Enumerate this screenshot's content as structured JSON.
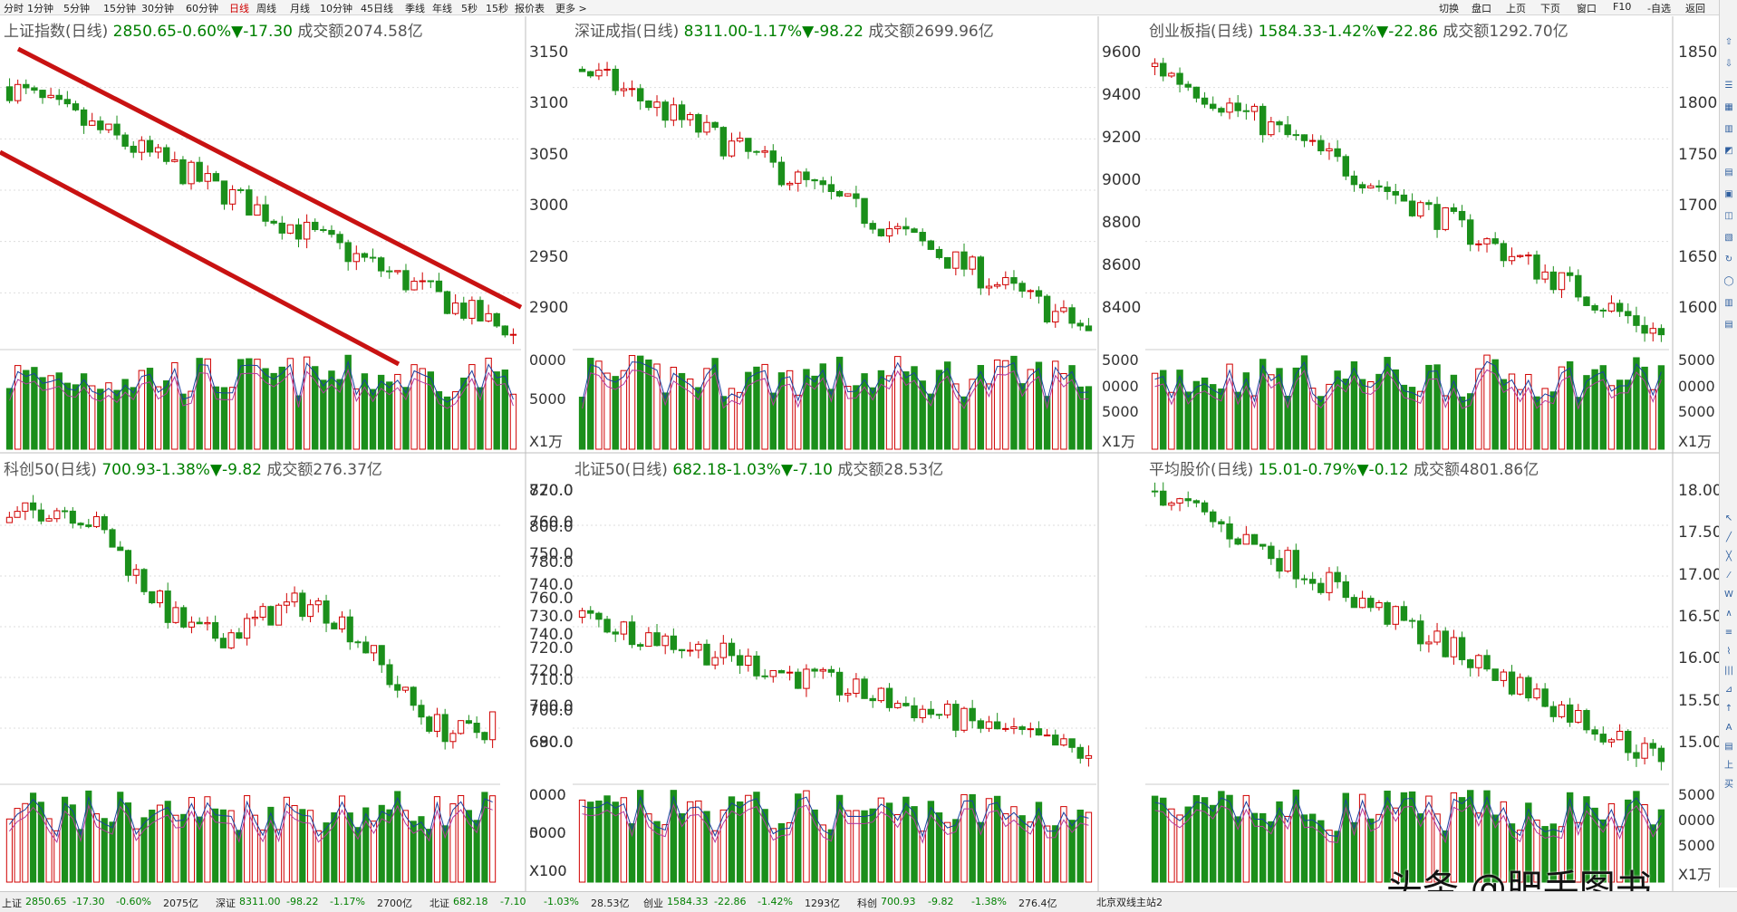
{
  "toolbar": {
    "timeframes": [
      "分时",
      "1分钟",
      "5分钟",
      "15分钟",
      "30分钟",
      "60分钟",
      "日线",
      "周线",
      "月线",
      "10分钟",
      "45日线",
      "季线",
      "年线",
      "5秒",
      "15秒",
      "报价表",
      "更多 >"
    ],
    "active": "日线",
    "right_buttons": [
      "切换",
      "盘口",
      "上页",
      "下页",
      "窗口",
      "F10",
      "-自选",
      "返回"
    ]
  },
  "panels": [
    {
      "name": "上证指数",
      "period": "(日线)",
      "price": "2850.65",
      "pct": "-0.60%",
      "change": "▼-17.30",
      "amount_label": "成交额",
      "amount": "2074.58亿",
      "y_axis_labels": [
        "3150",
        "3100",
        "3050",
        "3000",
        "2950",
        "2900"
      ],
      "volume_axis_labels": [
        "0000",
        "5000",
        "X1万"
      ],
      "chart_data": {
        "type": "candlestick",
        "ylim": [
          2840,
          3175
        ],
        "start": 3120,
        "end": 2850.65,
        "drift": "down",
        "trend_channel": true
      }
    },
    {
      "name": "深证成指",
      "period": "(日线)",
      "price": "8311.00",
      "pct": "-1.17%",
      "change": "▼-98.22",
      "amount_label": "成交额",
      "amount": "2699.96亿",
      "y_axis_labels": [],
      "volume_axis_labels": [],
      "chart_data": {
        "type": "candlestick",
        "ylim": [
          8250,
          9650
        ],
        "start": 9500,
        "end": 8311.0,
        "drift": "down"
      }
    },
    {
      "name": "创业板指",
      "period": "(日线)",
      "price": "1584.33",
      "pct": "-1.42%",
      "change": "▼-22.86",
      "amount_label": "成交额",
      "amount": "1292.70亿",
      "y_axis_labels_left": [
        "9600",
        "9400",
        "9200",
        "9000",
        "8800",
        "8600",
        "8400"
      ],
      "y_axis_labels": [
        "1850",
        "1800",
        "1750",
        "1700",
        "1650",
        "1600"
      ],
      "volume_axis_labels_left": [
        "5000",
        "0000",
        "5000",
        "X1万"
      ],
      "volume_axis_labels": [
        "5000",
        "0000",
        "5000",
        "X1万"
      ],
      "chart_data": {
        "type": "candlestick",
        "ylim": [
          1575,
          1880
        ],
        "start": 1850,
        "end": 1584.33,
        "drift": "down"
      }
    },
    {
      "name": "科创50",
      "period": "(日线)",
      "price": "700.93",
      "pct": "-1.38%",
      "change": "▼-9.82",
      "amount_label": "成交额",
      "amount": "276.37亿",
      "y_axis_labels": [
        "770.0",
        "760.0",
        "750.0",
        "740.0",
        "730.0",
        "720.0",
        "710.0",
        "700.0",
        "690.0"
      ],
      "volume_axis_labels": [
        "0000",
        "0000",
        "X100"
      ],
      "chart_data": {
        "type": "candlestick",
        "ylim": [
          680,
          775
        ],
        "start": 760,
        "end": 700.93,
        "drift": "mixed"
      }
    },
    {
      "name": "北证50",
      "period": "(日线)",
      "price": "682.18",
      "pct": "-1.03%",
      "change": "▼-7.10",
      "amount_label": "成交额",
      "amount": "28.53亿",
      "y_axis_labels": [
        "820.0",
        "800.0",
        "780.0",
        "760.0",
        "740.0",
        "720.0",
        "700.0",
        "680.0"
      ],
      "volume_axis_labels": [
        "0000",
        "5000",
        "X100"
      ],
      "chart_data": {
        "type": "candlestick",
        "ylim": [
          670,
          830
        ],
        "start": 755,
        "end": 682.18,
        "drift": "down"
      }
    },
    {
      "name": "平均股价",
      "period": "(日线)",
      "price": "15.01",
      "pct": "-0.79%",
      "change": "▼-0.12",
      "amount_label": "成交额",
      "amount": "4801.86亿",
      "y_axis_labels": [
        "18.00",
        "17.50",
        "17.00",
        "16.50",
        "16.00",
        "15.50",
        "15.00"
      ],
      "volume_axis_labels": [
        "5000",
        "0000",
        "5000",
        "X1万"
      ],
      "chart_data": {
        "type": "candlestick",
        "ylim": [
          14.8,
          18.5
        ],
        "start": 18.3,
        "end": 15.01,
        "drift": "down"
      }
    }
  ],
  "status_bar": [
    {
      "label": "上证",
      "value": "2850.65",
      "change": "-17.30",
      "pct": "-0.60%",
      "amount": "2075亿"
    },
    {
      "label": "深证",
      "value": "8311.00",
      "change": "-98.22",
      "pct": "-1.17%",
      "amount": "2700亿"
    },
    {
      "label": "北证",
      "value": "682.18",
      "change": "-7.10",
      "pct": "-1.03%",
      "amount": "28.53亿"
    },
    {
      "label": "创业",
      "value": "1584.33",
      "change": "-22.86",
      "pct": "-1.42%",
      "amount": "1293亿"
    },
    {
      "label": "科创",
      "value": "700.93",
      "change": "-9.82",
      "pct": "-1.38%",
      "amount": "276.4亿"
    }
  ],
  "status_extra": "北京双线主站2",
  "watermark": "头条 @肥手图书",
  "sidebar_icons": [
    "scroll-up-icon",
    "scroll-down-icon",
    "list-icon",
    "grid-icon",
    "kline-icon",
    "chart-icon",
    "f10-icon",
    "doc-icon",
    "info-icon",
    "f12-icon",
    "refresh-icon",
    "circle-icon",
    "bars-icon",
    "f5-icon"
  ],
  "colors": {
    "up": "#d00000",
    "down": "#1b8f1b",
    "channel": "#c81212",
    "ma1": "#1c3fa0",
    "ma2": "#b03aa0",
    "grid": "#dddddd"
  }
}
